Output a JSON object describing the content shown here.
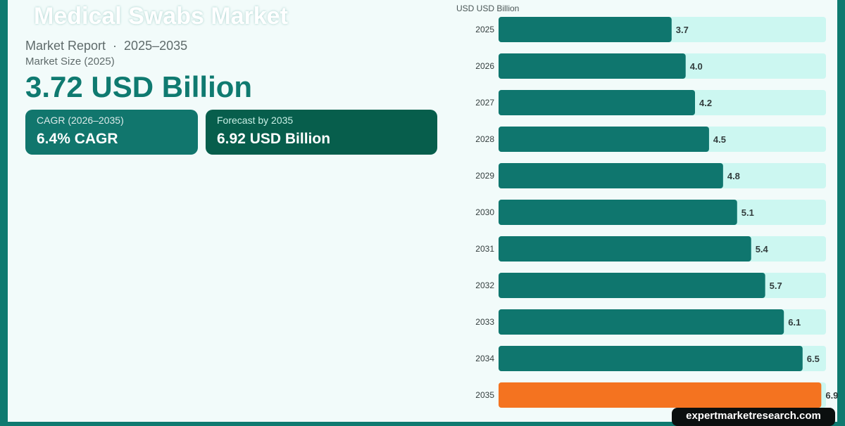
{
  "header": {
    "title": "Medical Swabs Market",
    "report_label": "Market Report",
    "separator": "·",
    "period": "2025–2035",
    "size_label": "Market Size (2025)",
    "size_value": "3.72 USD Billion"
  },
  "cards": {
    "cagr_label": "CAGR (2026–2035)",
    "cagr_value": "6.4% CAGR",
    "forecast_label": "Forecast by 2035",
    "forecast_value": "6.92 USD Billion"
  },
  "chart_data": {
    "type": "bar",
    "orientation": "horizontal",
    "unit_label": "USD USD Billion",
    "categories": [
      "2025",
      "2026",
      "2027",
      "2028",
      "2029",
      "2030",
      "2031",
      "2032",
      "2033",
      "2034",
      "2035"
    ],
    "values": [
      3.7,
      4.0,
      4.2,
      4.5,
      4.8,
      5.1,
      5.4,
      5.7,
      6.1,
      6.5,
      6.9
    ],
    "value_labels": [
      "3.7",
      "4.0",
      "4.2",
      "4.5",
      "4.8",
      "5.1",
      "5.4",
      "5.7",
      "6.1",
      "6.5",
      "6.9"
    ],
    "xlim": [
      0,
      7.0
    ],
    "grid": false,
    "colors": {
      "bar": "#0f766e",
      "highlight": "#f47320",
      "track": "#ccf7f1"
    },
    "highlight_category": "2035"
  },
  "footer": {
    "watermark": "expertmarketresearch.com"
  }
}
